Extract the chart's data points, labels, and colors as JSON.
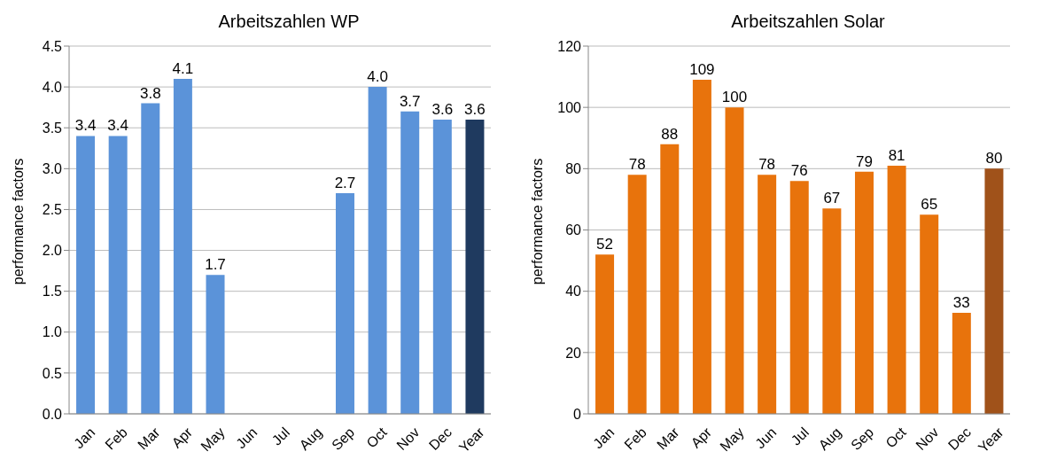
{
  "chart_data": [
    {
      "type": "bar",
      "title": "Arbeitszahlen WP",
      "ylabel": "performance factors",
      "categories": [
        "Jan",
        "Feb",
        "Mar",
        "Apr",
        "May",
        "Jun",
        "Jul",
        "Aug",
        "Sep",
        "Oct",
        "Nov",
        "Dec",
        "Year"
      ],
      "values": [
        3.4,
        3.4,
        3.8,
        4.1,
        1.7,
        null,
        null,
        null,
        2.7,
        4.0,
        3.7,
        3.6,
        3.6
      ],
      "value_labels": [
        "3.4",
        "3.4",
        "3.8",
        "4.1",
        "1.7",
        null,
        null,
        null,
        "2.7",
        "4.0",
        "3.7",
        "3.6",
        "3.6"
      ],
      "colors": [
        "#5b93d9",
        "#5b93d9",
        "#5b93d9",
        "#5b93d9",
        "#5b93d9",
        "#5b93d9",
        "#5b93d9",
        "#5b93d9",
        "#5b93d9",
        "#5b93d9",
        "#5b93d9",
        "#5b93d9",
        "#1f3a5f"
      ],
      "ylim": [
        0,
        4.5
      ],
      "yticks": [
        {
          "value": 0,
          "label": "0.0"
        },
        {
          "value": 0.5,
          "label": "0.5"
        },
        {
          "value": 1,
          "label": "1.0"
        },
        {
          "value": 1.5,
          "label": "1.5"
        },
        {
          "value": 2,
          "label": "2.0"
        },
        {
          "value": 2.5,
          "label": "2.5"
        },
        {
          "value": 3,
          "label": "3.0"
        },
        {
          "value": 3.5,
          "label": "3.5"
        },
        {
          "value": 4,
          "label": "4.0"
        },
        {
          "value": 4.5,
          "label": "4.5"
        }
      ],
      "grid": "y"
    },
    {
      "type": "bar",
      "title": "Arbeitszahlen Solar",
      "ylabel": "performance factors",
      "categories": [
        "Jan",
        "Feb",
        "Mar",
        "Apr",
        "May",
        "Jun",
        "Jul",
        "Aug",
        "Sep",
        "Oct",
        "Nov",
        "Dec",
        "Year"
      ],
      "values": [
        52,
        78,
        88,
        109,
        100,
        78,
        76,
        67,
        79,
        81,
        65,
        33,
        80
      ],
      "data_labels": true,
      "colors": [
        "#e8730c",
        "#e8730c",
        "#e8730c",
        "#e8730c",
        "#e8730c",
        "#e8730c",
        "#e8730c",
        "#e8730c",
        "#e8730c",
        "#e8730c",
        "#e8730c",
        "#e8730c",
        "#a0521a"
      ],
      "ylim": [
        0,
        120
      ],
      "yticks": [
        0,
        20,
        40,
        60,
        80,
        100,
        120
      ],
      "grid": "y"
    }
  ]
}
